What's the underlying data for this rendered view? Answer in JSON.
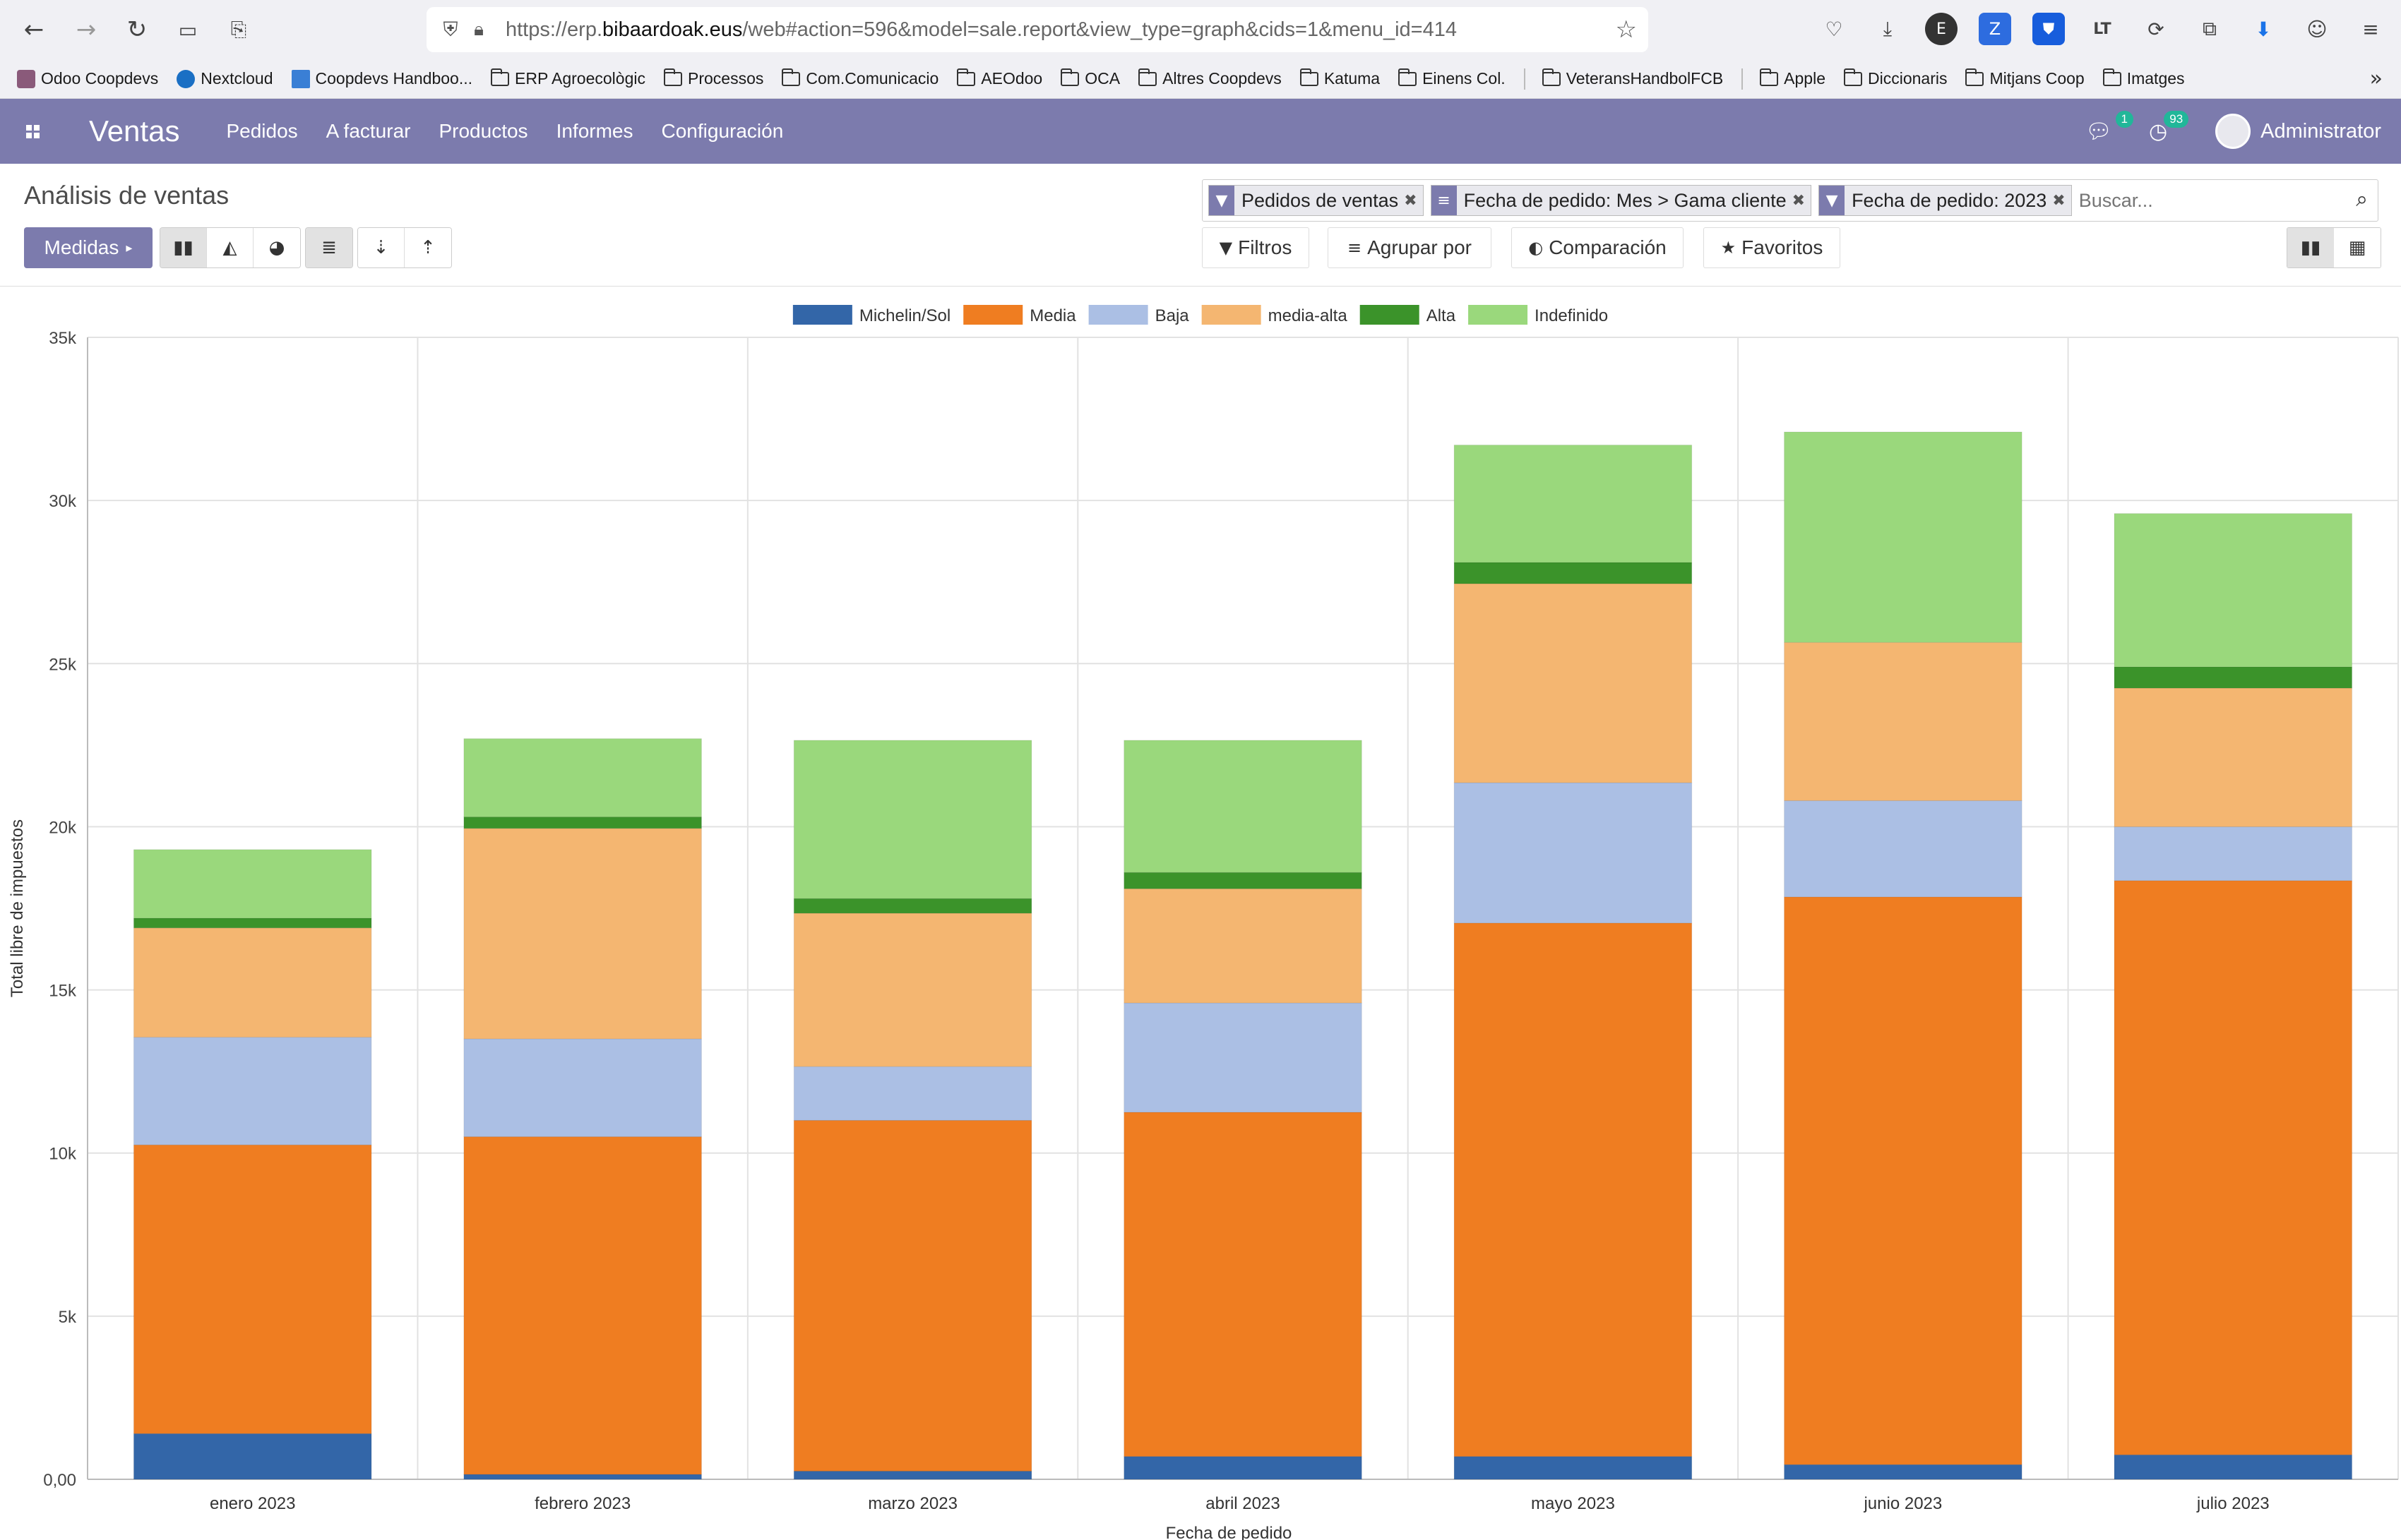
{
  "browser": {
    "url_prefix": "https://erp.",
    "url_domain": "bibaardoak.eus",
    "url_path": "/web#action=596&model=sale.report&view_type=graph&cids=1&menu_id=414",
    "bookmarks": [
      {
        "label": "Odoo Coopdevs",
        "icon": "odoo-favicon",
        "color": "#8a5a7a"
      },
      {
        "label": "Nextcloud",
        "icon": "nextcloud-favicon",
        "color": "#1a6fc4"
      },
      {
        "label": "Coopdevs Handboo...",
        "icon": "coopdevs-favicon",
        "color": "#3a7fd5"
      },
      {
        "label": "ERP Agroecològic",
        "icon": "folder-icon"
      },
      {
        "label": "Processos",
        "icon": "folder-icon"
      },
      {
        "label": "Com.Comunicacio",
        "icon": "folder-icon"
      },
      {
        "label": "AEOdoo",
        "icon": "folder-icon"
      },
      {
        "label": "OCA",
        "icon": "folder-icon"
      },
      {
        "label": "Altres Coopdevs",
        "icon": "folder-icon"
      },
      {
        "label": "Katuma",
        "icon": "folder-icon"
      },
      {
        "label": "Einens Col.",
        "icon": "folder-icon"
      },
      {
        "label": "VeteransHandbolFCB",
        "icon": "folder-icon"
      },
      {
        "label": "Apple",
        "icon": "folder-icon"
      },
      {
        "label": "Diccionaris",
        "icon": "folder-icon"
      },
      {
        "label": "Mitjans Coop",
        "icon": "folder-icon"
      },
      {
        "label": "Imatges",
        "icon": "folder-icon"
      }
    ]
  },
  "navbar": {
    "app_name": "Ventas",
    "menus": [
      "Pedidos",
      "A facturar",
      "Productos",
      "Informes",
      "Configuración"
    ],
    "messages_count": "1",
    "activities_count": "93",
    "user_name": "Administrator",
    "accent": "#7c7bad"
  },
  "control_panel": {
    "title": "Análisis de ventas",
    "measures_label": "Medidas",
    "facets": [
      {
        "icon": "filter-icon",
        "label": "Pedidos de ventas"
      },
      {
        "icon": "group-by-icon",
        "label": "Fecha de pedido: Mes > Gama cliente"
      },
      {
        "icon": "filter-icon",
        "label": "Fecha de pedido: 2023"
      }
    ],
    "search_placeholder": "Buscar...",
    "filters_label": "Filtros",
    "groupby_label": "Agrupar por",
    "comparison_label": "Comparación",
    "favorites_label": "Favoritos"
  },
  "chart_data": {
    "type": "bar",
    "stacked": true,
    "categories": [
      "enero 2023",
      "febrero 2023",
      "marzo 2023",
      "abril 2023",
      "mayo 2023",
      "junio 2023",
      "julio 2023"
    ],
    "series": [
      {
        "name": "Michelin/Sol",
        "color": "#3366a8",
        "values": [
          1400,
          150,
          250,
          700,
          700,
          450,
          750
        ]
      },
      {
        "name": "Media",
        "color": "#ef7d21",
        "values": [
          8850,
          10350,
          10750,
          10550,
          16350,
          17400,
          17600
        ]
      },
      {
        "name": "Baja",
        "color": "#abbfe4",
        "values": [
          3300,
          3000,
          1650,
          3350,
          4300,
          2950,
          1650
        ]
      },
      {
        "name": "media-alta",
        "color": "#f4b671",
        "values": [
          3350,
          6450,
          4700,
          3500,
          6100,
          4850,
          4250
        ]
      },
      {
        "name": "Alta",
        "color": "#3b932a",
        "values": [
          300,
          350,
          450,
          500,
          650,
          0,
          650
        ]
      },
      {
        "name": "Indefinido",
        "color": "#9ad87c",
        "values": [
          2100,
          2400,
          4850,
          4050,
          3600,
          6450,
          4700
        ]
      }
    ],
    "ylabel": "Total libre de impuestos",
    "xlabel": "Fecha de pedido",
    "ylim": [
      0,
      35000
    ],
    "yticks": [
      "0,00",
      "5k",
      "10k",
      "15k",
      "20k",
      "25k",
      "30k",
      "35k"
    ],
    "grid": true,
    "legend": "top-center"
  }
}
